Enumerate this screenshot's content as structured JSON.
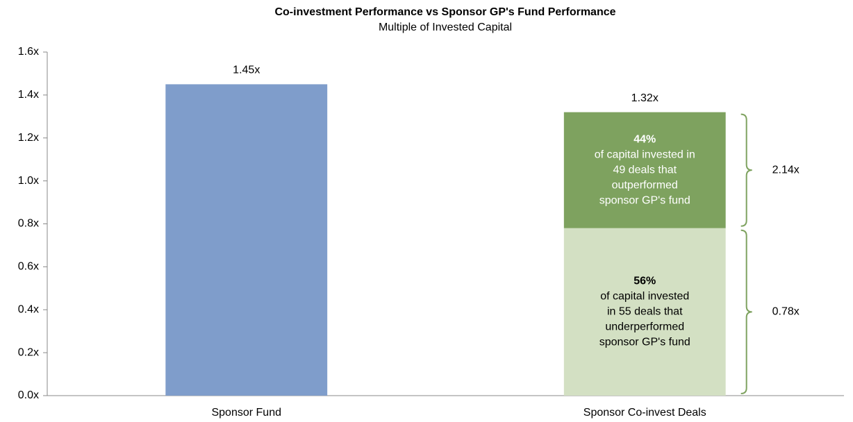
{
  "chart_data": {
    "type": "stacked_bar",
    "title": "Co-investment Performance vs Sponsor GP's Fund Performance",
    "subtitle": "Multiple of Invested Capital",
    "categories": [
      "Sponsor Fund",
      "Sponsor Co-invest Deals"
    ],
    "series": [
      {
        "color": "#7f9dcb",
        "values": [
          1.45,
          null
        ]
      },
      {
        "color": "#d3e0c3",
        "text_color": "#000000",
        "values": [
          null,
          0.78
        ],
        "annotation": {
          "pct": "56%",
          "lines": [
            "of capital invested",
            "in 55 deals that",
            "underperformed",
            "sponsor GP's fund"
          ],
          "bracket_label": "0.78x"
        }
      },
      {
        "color": "#7ea25f",
        "text_color": "#ffffff",
        "values": [
          null,
          0.54
        ],
        "annotation": {
          "pct": "44%",
          "lines": [
            "of capital invested in",
            "49 deals that",
            "outperformed",
            "sponsor GP's fund"
          ],
          "bracket_label": "2.14x"
        }
      }
    ],
    "totals": [
      1.45,
      1.32
    ],
    "total_labels": [
      "1.45x",
      "1.32x"
    ],
    "ylim": [
      0,
      1.6
    ],
    "yticks": [
      {
        "value": 0,
        "label": "0.0x"
      },
      {
        "value": 0.2,
        "label": "0.2x"
      },
      {
        "value": 0.4,
        "label": "0.4x"
      },
      {
        "value": 0.6,
        "label": "0.6x"
      },
      {
        "value": 0.8,
        "label": "0.8x"
      },
      {
        "value": 1.0,
        "label": "1.0x"
      },
      {
        "value": 1.2,
        "label": "1.2x"
      },
      {
        "value": 1.4,
        "label": "1.4x"
      },
      {
        "value": 1.6,
        "label": "1.6x"
      }
    ],
    "bracket_color": "#7ea25f"
  }
}
